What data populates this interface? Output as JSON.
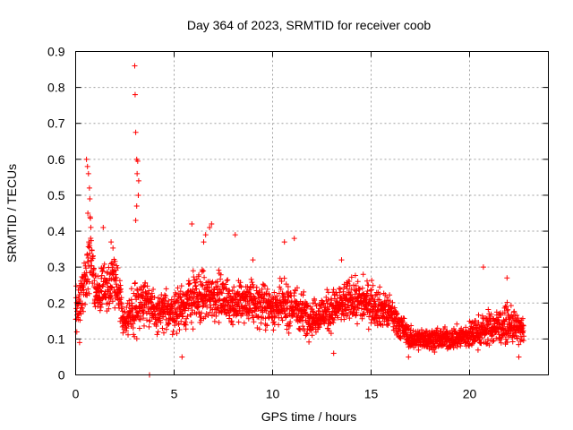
{
  "chart_data": {
    "type": "scatter",
    "title": "Day 364 of 2023, SRMTID for receiver coob",
    "xlabel": "GPS time / hours",
    "ylabel": "SRMTID / TECUs",
    "xlim": [
      0,
      24
    ],
    "ylim": [
      0,
      0.9
    ],
    "x_ticks": [
      0,
      5,
      10,
      15,
      20
    ],
    "x_tick_labels": [
      "0",
      "5",
      "10",
      "15",
      "20"
    ],
    "y_ticks": [
      0,
      0.1,
      0.2,
      0.3,
      0.4,
      0.5,
      0.6,
      0.7,
      0.8,
      0.9
    ],
    "y_tick_labels": [
      "0",
      "0.1",
      "0.2",
      "0.3",
      "0.4",
      "0.5",
      "0.6",
      "0.7",
      "0.8",
      "0.9"
    ],
    "grid": true,
    "marker": "plus",
    "series": [
      {
        "name": "SRMTID",
        "color": "#ff0000",
        "trend": [
          [
            0.0,
            0.18,
            0.06
          ],
          [
            0.5,
            0.25,
            0.08
          ],
          [
            0.75,
            0.35,
            0.12
          ],
          [
            1.0,
            0.22,
            0.06
          ],
          [
            1.5,
            0.25,
            0.07
          ],
          [
            2.0,
            0.26,
            0.08
          ],
          [
            2.5,
            0.15,
            0.05
          ],
          [
            3.0,
            0.18,
            0.08
          ],
          [
            3.5,
            0.22,
            0.06
          ],
          [
            4.0,
            0.17,
            0.05
          ],
          [
            5.0,
            0.18,
            0.06
          ],
          [
            6.0,
            0.21,
            0.08
          ],
          [
            7.0,
            0.22,
            0.07
          ],
          [
            8.0,
            0.2,
            0.06
          ],
          [
            9.0,
            0.2,
            0.06
          ],
          [
            10.0,
            0.19,
            0.06
          ],
          [
            11.0,
            0.19,
            0.07
          ],
          [
            12.0,
            0.16,
            0.05
          ],
          [
            13.0,
            0.18,
            0.06
          ],
          [
            14.0,
            0.21,
            0.06
          ],
          [
            15.0,
            0.2,
            0.06
          ],
          [
            16.0,
            0.17,
            0.05
          ],
          [
            17.0,
            0.1,
            0.03
          ],
          [
            18.0,
            0.1,
            0.03
          ],
          [
            19.0,
            0.1,
            0.03
          ],
          [
            20.0,
            0.11,
            0.04
          ],
          [
            21.0,
            0.13,
            0.05
          ],
          [
            22.0,
            0.14,
            0.05
          ],
          [
            22.75,
            0.12,
            0.04
          ]
        ],
        "peaks": [
          [
            0.55,
            0.6
          ],
          [
            0.6,
            0.58
          ],
          [
            0.65,
            0.56
          ],
          [
            0.7,
            0.52
          ],
          [
            0.72,
            0.49
          ],
          [
            0.62,
            0.45
          ],
          [
            1.4,
            0.41
          ],
          [
            1.8,
            0.37
          ],
          [
            3.0,
            0.86
          ],
          [
            3.02,
            0.78
          ],
          [
            3.05,
            0.675
          ],
          [
            3.1,
            0.6
          ],
          [
            3.15,
            0.595
          ],
          [
            3.12,
            0.56
          ],
          [
            3.2,
            0.54
          ],
          [
            3.18,
            0.5
          ],
          [
            3.1,
            0.47
          ],
          [
            3.05,
            0.43
          ],
          [
            3.75,
            0.0
          ],
          [
            5.9,
            0.42
          ],
          [
            6.9,
            0.42
          ],
          [
            6.8,
            0.41
          ],
          [
            8.1,
            0.39
          ],
          [
            10.6,
            0.37
          ],
          [
            11.1,
            0.38
          ],
          [
            13.5,
            0.32
          ],
          [
            20.7,
            0.3
          ],
          [
            21.9,
            0.27
          ],
          [
            6.5,
            0.37
          ],
          [
            6.6,
            0.39
          ],
          [
            9.0,
            0.32
          ],
          [
            14.6,
            0.28
          ],
          [
            0.2,
            0.09
          ],
          [
            5.4,
            0.05
          ],
          [
            13.1,
            0.06
          ],
          [
            22.5,
            0.05
          ],
          [
            16.9,
            0.05
          ]
        ]
      }
    ]
  }
}
